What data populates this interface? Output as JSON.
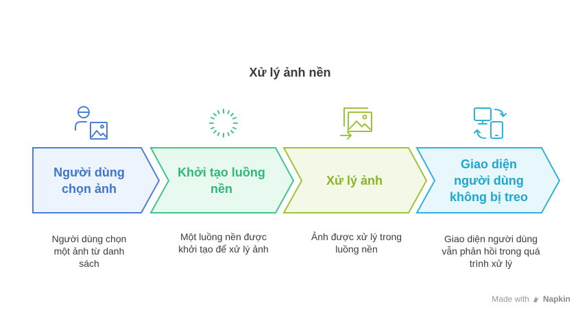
{
  "title": "Xử lý ảnh nền",
  "steps": [
    {
      "label": "Người dùng chọn ảnh",
      "description": "Người dùng chọn một ảnh từ danh sách",
      "icon": "user-image-icon",
      "stroke": "#4a7fd6",
      "fill": "#eef4fd",
      "text_color": "#3f75cf"
    },
    {
      "label": "Khởi tạo luồng nền",
      "description": "Một luồng nền được khởi tạo để xử lý ảnh",
      "icon": "loading-spinner-icon",
      "stroke": "#3fc58a",
      "fill": "#e8f9f0",
      "text_color": "#2fb878"
    },
    {
      "label": "Xử lý ảnh",
      "description": "Ảnh được xử lý trong luồng nền",
      "icon": "image-gallery-icon",
      "stroke": "#9cc436",
      "fill": "#f3f9e6",
      "text_color": "#8ab42a"
    },
    {
      "label": "Giao diện người dùng không bị treo",
      "description": "Giao diện người dùng vẫn phản hồi trong quá trình xử lý",
      "icon": "device-sync-icon",
      "stroke": "#2fb2d8",
      "fill": "#e7f7fc",
      "text_color": "#1ea6cf"
    }
  ],
  "footer": {
    "made_with": "Made with",
    "brand": "Napkin"
  }
}
